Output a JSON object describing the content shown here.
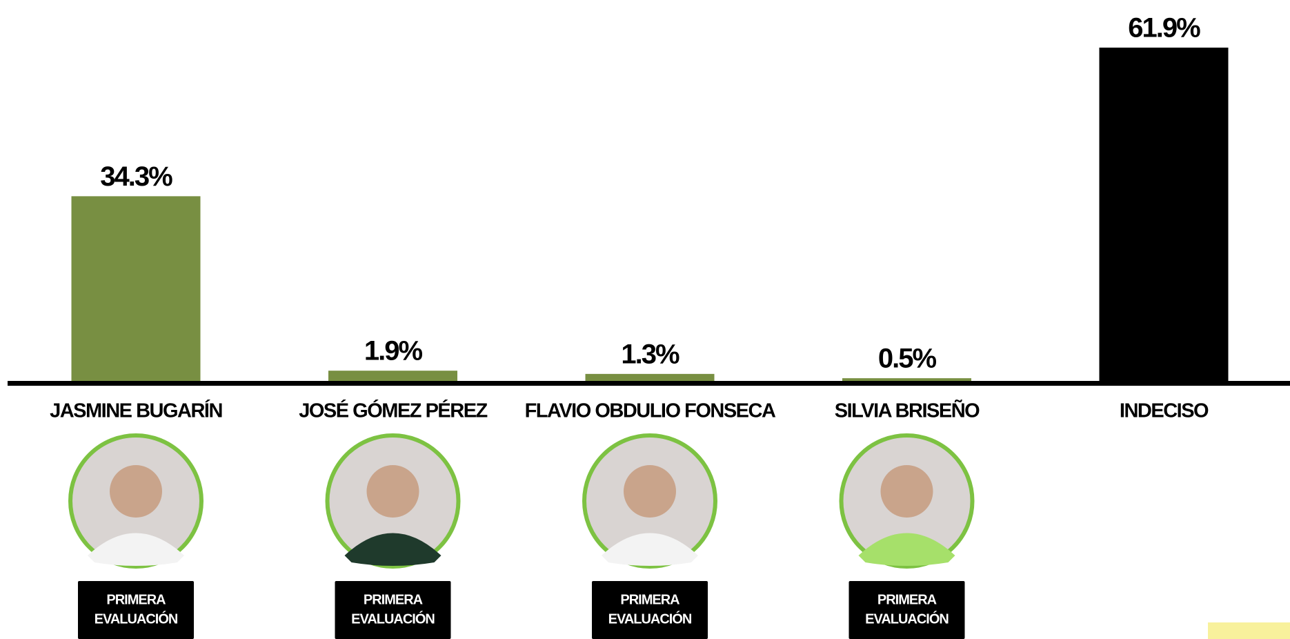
{
  "chart_data": {
    "type": "bar",
    "categories": [
      "JASMINE BUGARÍN",
      "JOSÉ GÓMEZ PÉREZ",
      "FLAVIO OBDULIO FONSECA",
      "SILVIA BRISEÑO",
      "INDECISO"
    ],
    "values": [
      34.3,
      1.9,
      1.3,
      0.5,
      61.9
    ],
    "value_labels": [
      "34.3%",
      "1.9%",
      "1.3%",
      "0.5%",
      "61.9%"
    ],
    "colors": [
      "#788f42",
      "#788f42",
      "#788f42",
      "#788f42",
      "#000000"
    ],
    "ylim": [
      0,
      61.9
    ],
    "badges": [
      [
        "PRIMERA",
        "EVALUACIÓN"
      ],
      [
        "PRIMERA",
        "EVALUACIÓN"
      ],
      [
        "PRIMERA",
        "EVALUACIÓN"
      ],
      [
        "PRIMERA",
        "EVALUACIÓN"
      ]
    ]
  }
}
